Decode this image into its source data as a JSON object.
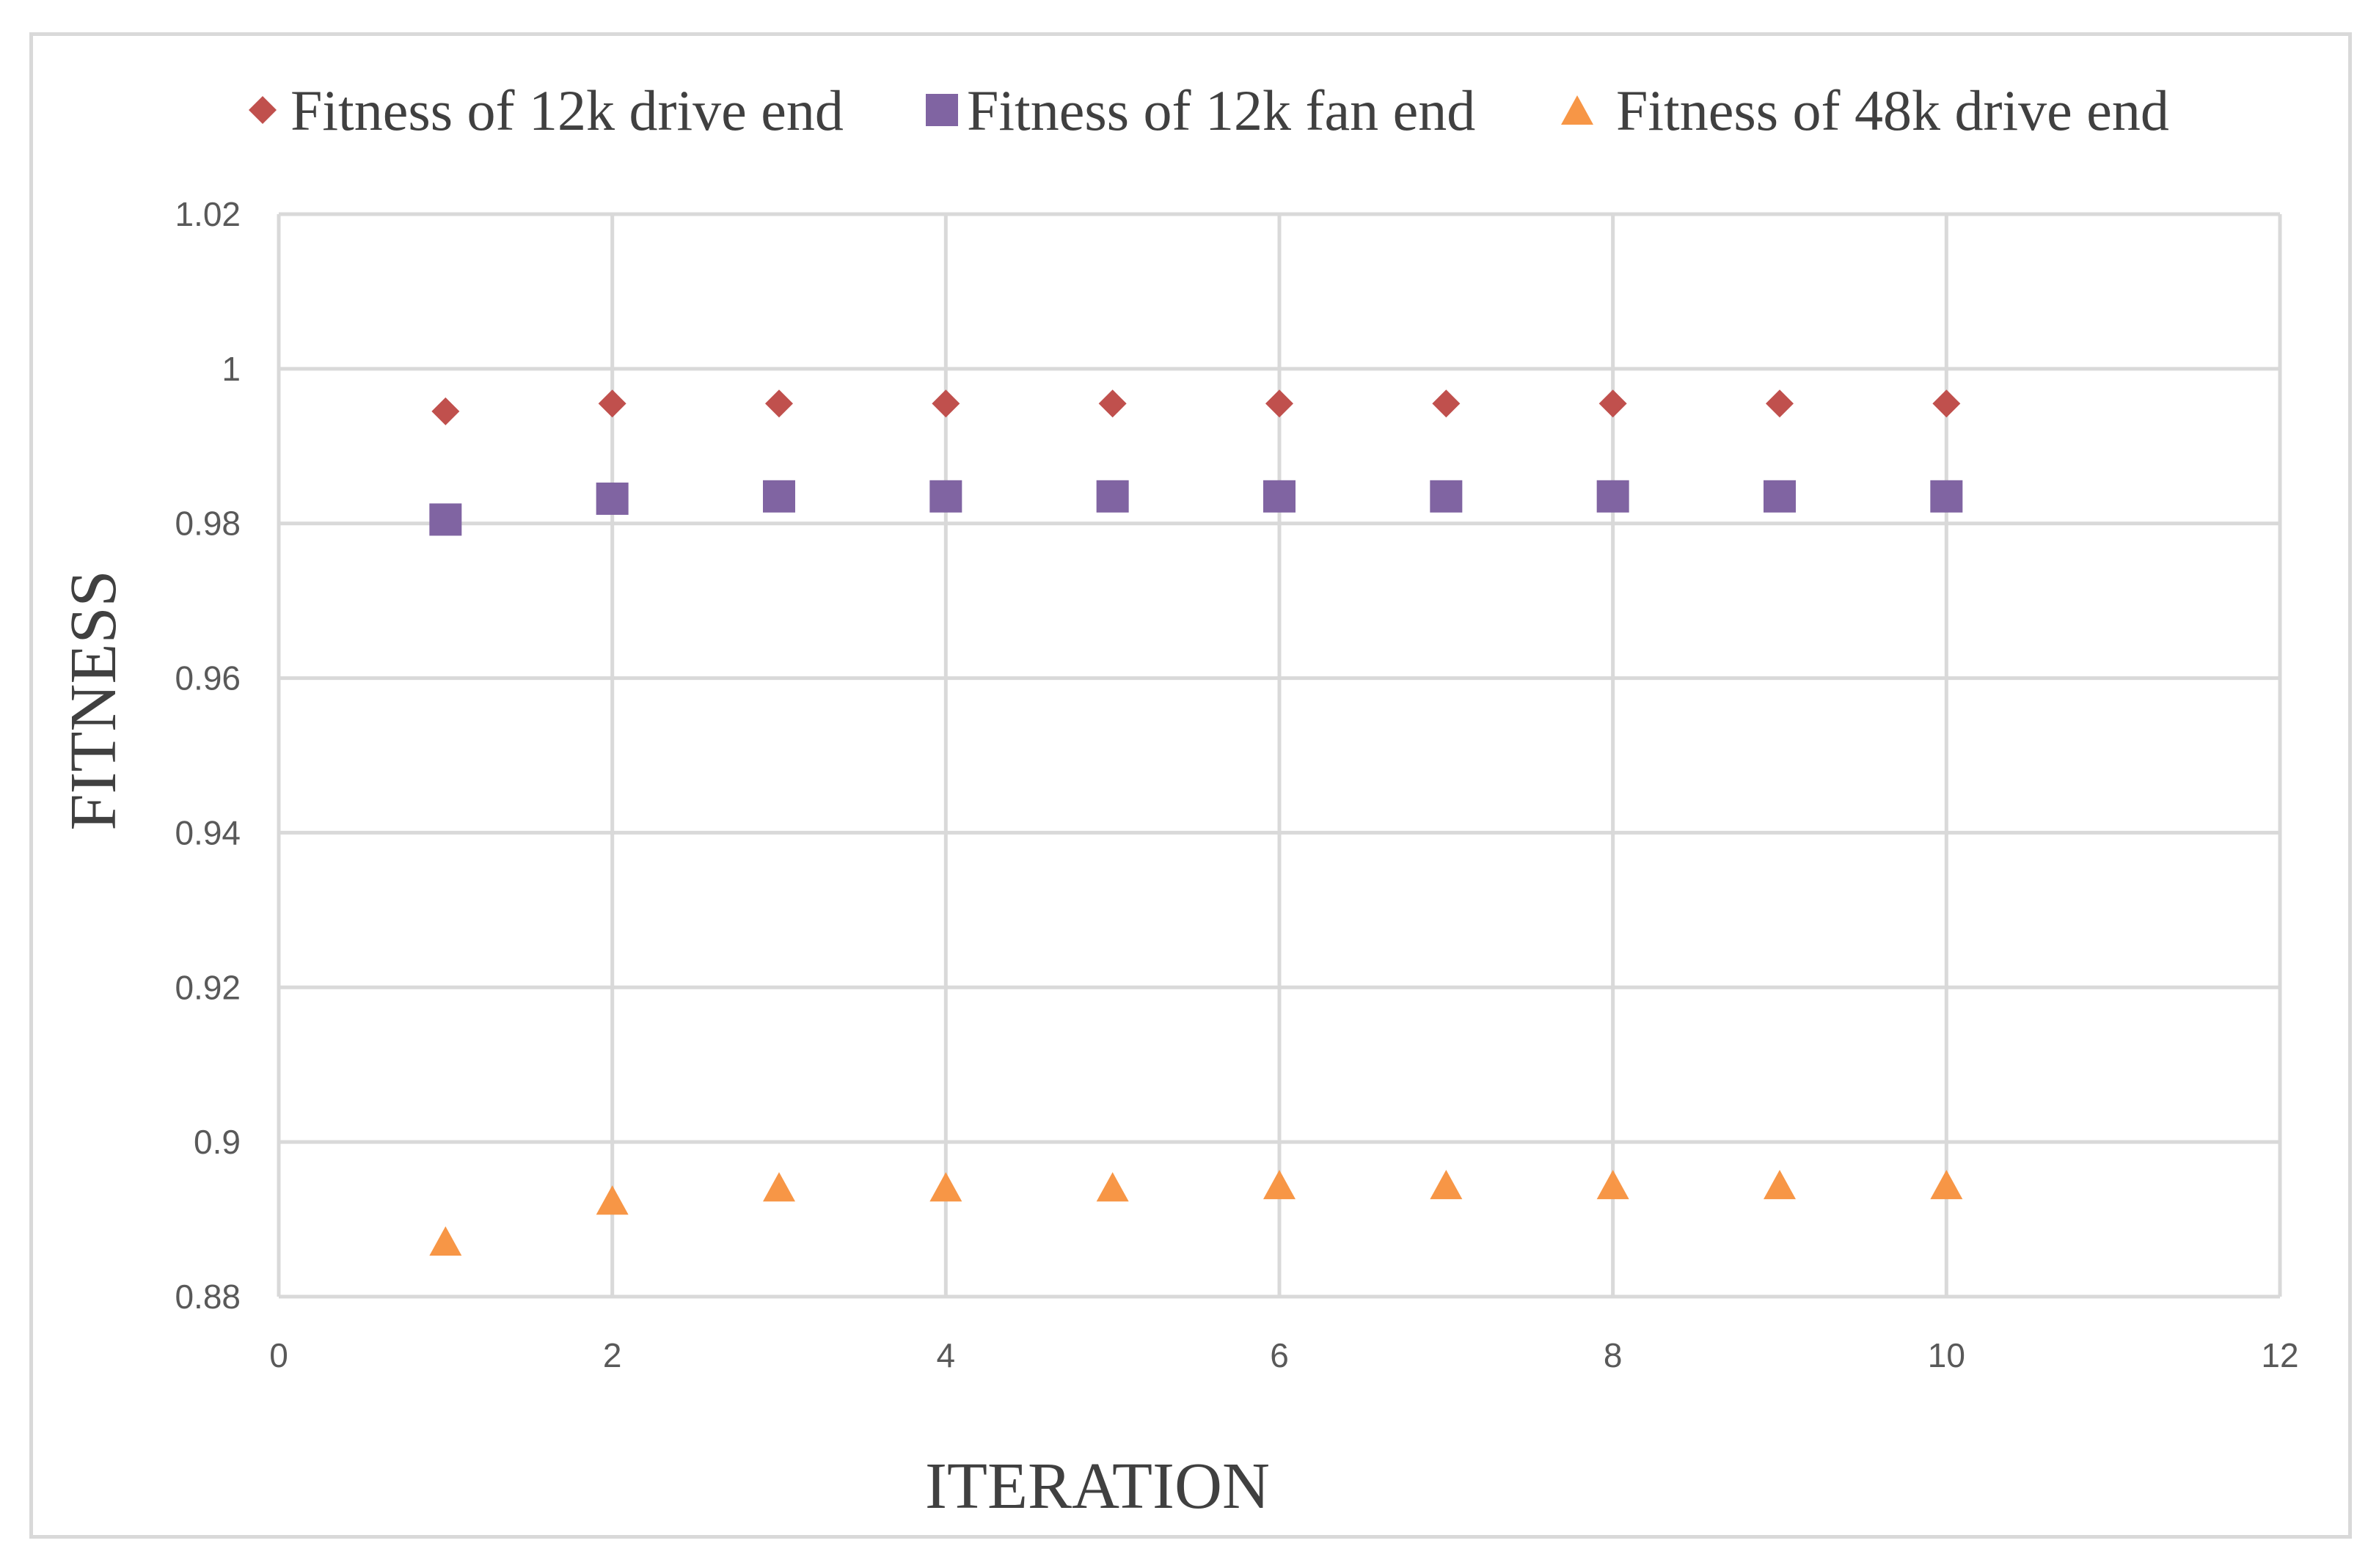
{
  "chart_data": {
    "type": "scatter",
    "title": "",
    "xlabel": "ITERATION",
    "ylabel": "FITNESS",
    "xlim": [
      0,
      12
    ],
    "ylim": [
      0.88,
      1.02
    ],
    "xticks": [
      0,
      2,
      4,
      6,
      8,
      10,
      12
    ],
    "yticks": [
      0.88,
      0.9,
      0.92,
      0.94,
      0.96,
      0.98,
      1,
      1.02
    ],
    "xtick_labels": [
      "0",
      "2",
      "4",
      "6",
      "8",
      "10",
      "12"
    ],
    "ytick_labels": [
      "0.88",
      "0.9",
      "0.92",
      "0.94",
      "0.96",
      "0.98",
      "1",
      "1.02"
    ],
    "grid": true,
    "legend_position": "top",
    "series": [
      {
        "name": "Fitness of 12k drive end",
        "marker": "diamond",
        "color": "#c0504d",
        "x": [
          1,
          2,
          3,
          4,
          5,
          6,
          7,
          8,
          9,
          10
        ],
        "y": [
          0.9945,
          0.9955,
          0.9955,
          0.9955,
          0.9955,
          0.9955,
          0.9955,
          0.9955,
          0.9955,
          0.9955
        ]
      },
      {
        "name": "Fitness of 12k fan end",
        "marker": "square",
        "color": "#8064a2",
        "x": [
          1,
          2,
          3,
          4,
          5,
          6,
          7,
          8,
          9,
          10
        ],
        "y": [
          0.9805,
          0.9832,
          0.9835,
          0.9835,
          0.9835,
          0.9835,
          0.9835,
          0.9835,
          0.9835,
          0.9835
        ]
      },
      {
        "name": "Fitness of 48k drive end",
        "marker": "triangle",
        "color": "#f79646",
        "x": [
          1,
          2,
          3,
          4,
          5,
          6,
          7,
          8,
          9,
          10
        ],
        "y": [
          0.8872,
          0.8925,
          0.8942,
          0.8942,
          0.8942,
          0.8945,
          0.8945,
          0.8945,
          0.8945,
          0.8945
        ]
      }
    ]
  }
}
